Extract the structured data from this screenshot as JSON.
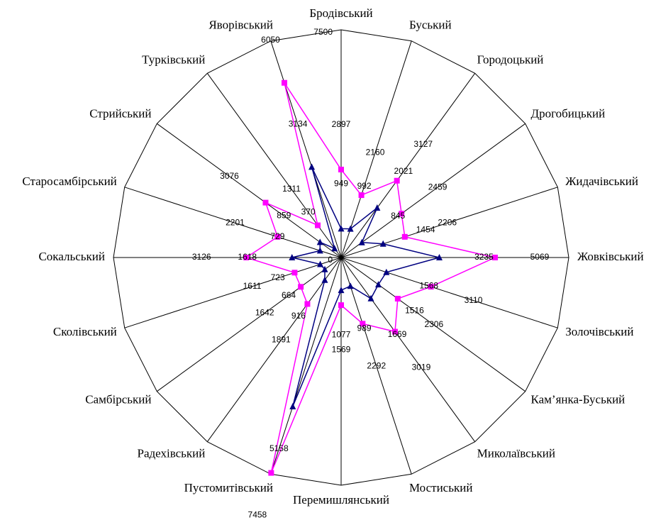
{
  "chart_data": {
    "type": "radar",
    "categories": [
      "Бродівський",
      "Буський",
      "Городоцький",
      "Дрогобицький",
      "Жидачівський",
      "Жовківський",
      "Золочівський",
      "Кам’янка-Буський",
      "Миколаївський",
      "Мостиський",
      "Перемишлянський",
      "Пустомитівський",
      "Радехівський",
      "Самбірський",
      "Сколівський",
      "Сокальський",
      "Старосамбірський",
      "Стрийський",
      "Турківський",
      "Яворівський"
    ],
    "series": [
      {
        "color": "#ff00ff",
        "marker": "square",
        "values": [
          2897,
          2160,
          3127,
          2459,
          2206,
          5069,
          3110,
          2306,
          3019,
          2292,
          1569,
          7458,
          1891,
          1642,
          1611,
          3126,
          2201,
          3076,
          1311,
          6050
        ]
      },
      {
        "color": "#000080",
        "marker": "triangle",
        "values": [
          949,
          992,
          2021,
          845,
          1454,
          3235,
          1568,
          1516,
          1669,
          989,
          1077,
          5158,
          916,
          664,
          723,
          1618,
          729,
          859,
          370,
          3134
        ]
      }
    ],
    "ylim": [
      0,
      7500
    ],
    "yticks": [
      0,
      7500
    ]
  }
}
